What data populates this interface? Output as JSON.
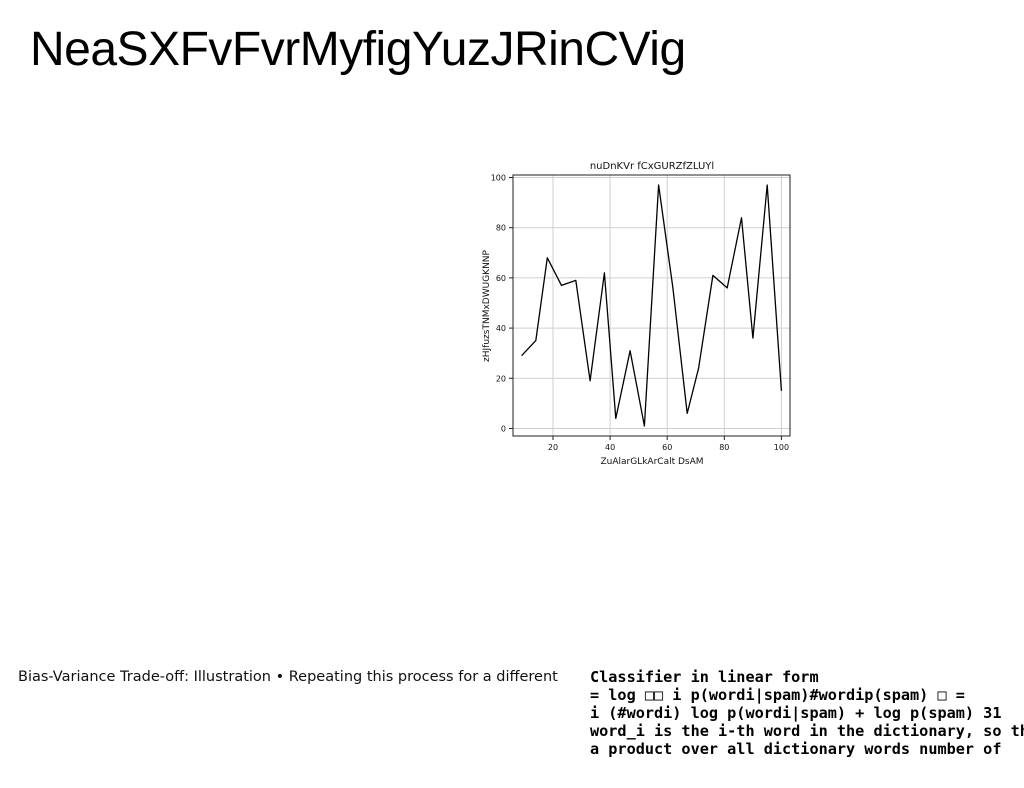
{
  "page": {
    "title": "NeaSXFvFvrMyfigYuzJRinCVig"
  },
  "chart_data": {
    "type": "line",
    "title": "nuDnKVr fCxGURZfZLUYl",
    "xlabel": "ZuAlarGLkArCalt DsAM",
    "ylabel": "zHJfuzsTNMxDWUGKNNP",
    "xlim": [
      6,
      103
    ],
    "ylim": [
      -3,
      101
    ],
    "grid": true,
    "x_ticks": [
      20,
      40,
      60,
      80,
      100
    ],
    "y_ticks": [
      0,
      20,
      40,
      60,
      80,
      100
    ],
    "series": [
      {
        "color": "#000000",
        "x": [
          9,
          14,
          18,
          23,
          28,
          33,
          38,
          42,
          47,
          52,
          57,
          62,
          67,
          71,
          76,
          81,
          86,
          90,
          95,
          100
        ],
        "y": [
          29,
          35,
          68,
          57,
          59,
          19,
          62,
          4,
          31,
          1,
          97,
          56,
          6,
          24,
          61,
          56,
          84,
          36,
          97,
          15
        ]
      }
    ]
  },
  "captions": {
    "left": "Bias-Variance Trade-off: Illustration • Repeating this process for a different",
    "right_lines": [
      "Classifier in linear form",
      "= log □□ i p(wordi|spam)#wordip(spam) □ =",
      "i (#wordi) log p(wordi|spam) + log p(spam) 31",
      "word_i is the i-th word in the dictionary, so this",
      "a product over all dictionary words number of"
    ]
  }
}
